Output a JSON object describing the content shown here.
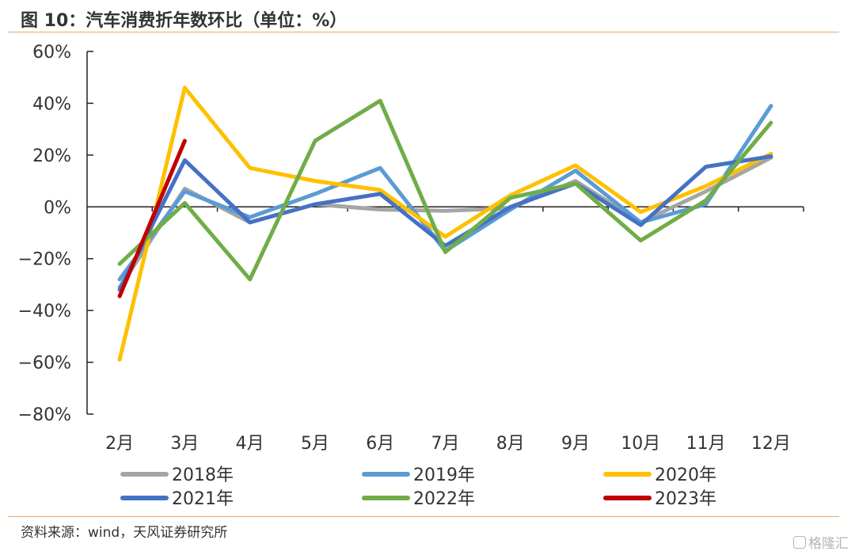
{
  "figure": {
    "title": "图 10：汽车消费折年数环比（单位：%）",
    "source": "资料来源：wind，天风证券研究所",
    "watermark": "格隆汇"
  },
  "chart_data": {
    "type": "line",
    "categories": [
      "2月",
      "3月",
      "4月",
      "5月",
      "6月",
      "7月",
      "8月",
      "9月",
      "10月",
      "11月",
      "12月"
    ],
    "ylim": [
      -80,
      60
    ],
    "yticks": [
      -80,
      -60,
      -40,
      -20,
      0,
      20,
      40,
      60
    ],
    "ytick_labels": [
      "−80%",
      "−60%",
      "−40%",
      "−20%",
      "0%",
      "20%",
      "40%",
      "60%"
    ],
    "grid": false,
    "legend_position": "bottom",
    "series": [
      {
        "name": "2018年",
        "color": "#a5a5a5",
        "values": [
          -31,
          7,
          -6,
          1,
          -1,
          -1.5,
          -0.5,
          10,
          -6,
          6,
          19
        ]
      },
      {
        "name": "2019年",
        "color": "#5b9bd5",
        "values": [
          -28,
          6,
          -4,
          5,
          15,
          -17,
          -1,
          14,
          -6,
          1,
          39
        ]
      },
      {
        "name": "2020年",
        "color": "#ffc000",
        "values": [
          -59,
          46,
          15,
          10,
          6.5,
          -11.5,
          4.5,
          16,
          -2,
          8,
          20.5
        ]
      },
      {
        "name": "2021年",
        "color": "#4472c4",
        "values": [
          -32,
          18,
          -6,
          1,
          5,
          -15,
          0,
          9,
          -7,
          15.5,
          19.5
        ]
      },
      {
        "name": "2022年",
        "color": "#70ad47",
        "values": [
          -22,
          1.5,
          -28,
          25.5,
          41,
          -17.5,
          3.5,
          9,
          -13,
          2.5,
          32.5
        ]
      },
      {
        "name": "2023年",
        "color": "#c00000",
        "values": [
          -34.5,
          25.5,
          null,
          null,
          null,
          null,
          null,
          null,
          null,
          null,
          null
        ]
      }
    ]
  }
}
